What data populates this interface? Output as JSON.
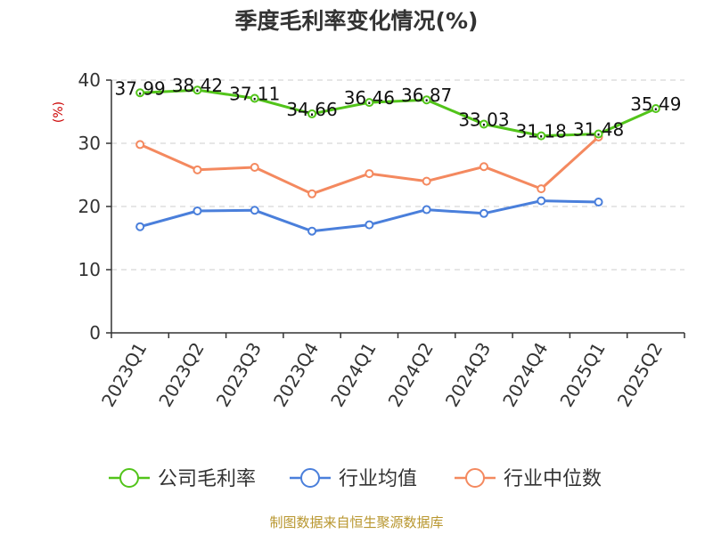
{
  "chart_data": {
    "type": "line",
    "title": "季度毛利率变化情况(%)",
    "ylabel": "(%)",
    "xlabel": "",
    "ylim": [
      0,
      40
    ],
    "yticks": [
      0,
      10,
      20,
      30,
      40
    ],
    "grid": true,
    "legend_position": "bottom",
    "categories": [
      "2023Q1",
      "2023Q2",
      "2023Q3",
      "2023Q4",
      "2024Q1",
      "2024Q2",
      "2024Q3",
      "2024Q4",
      "2025Q1",
      "2025Q2"
    ],
    "series": [
      {
        "name": "公司毛利率",
        "color": "#52c41a",
        "show_labels": true,
        "values": [
          37.99,
          38.42,
          37.11,
          34.66,
          36.46,
          36.87,
          33.03,
          31.18,
          31.48,
          35.49
        ]
      },
      {
        "name": "行业均值",
        "color": "#4a7fdb",
        "show_labels": false,
        "values": [
          16.8,
          19.3,
          19.4,
          16.1,
          17.1,
          19.5,
          18.9,
          20.9,
          20.7,
          null
        ]
      },
      {
        "name": "行业中位数",
        "color": "#f4895f",
        "show_labels": false,
        "values": [
          29.8,
          25.8,
          26.2,
          22.0,
          25.2,
          24.0,
          26.3,
          22.8,
          31.0,
          null
        ]
      }
    ]
  },
  "source": "制图数据来自恒生聚源数据库"
}
